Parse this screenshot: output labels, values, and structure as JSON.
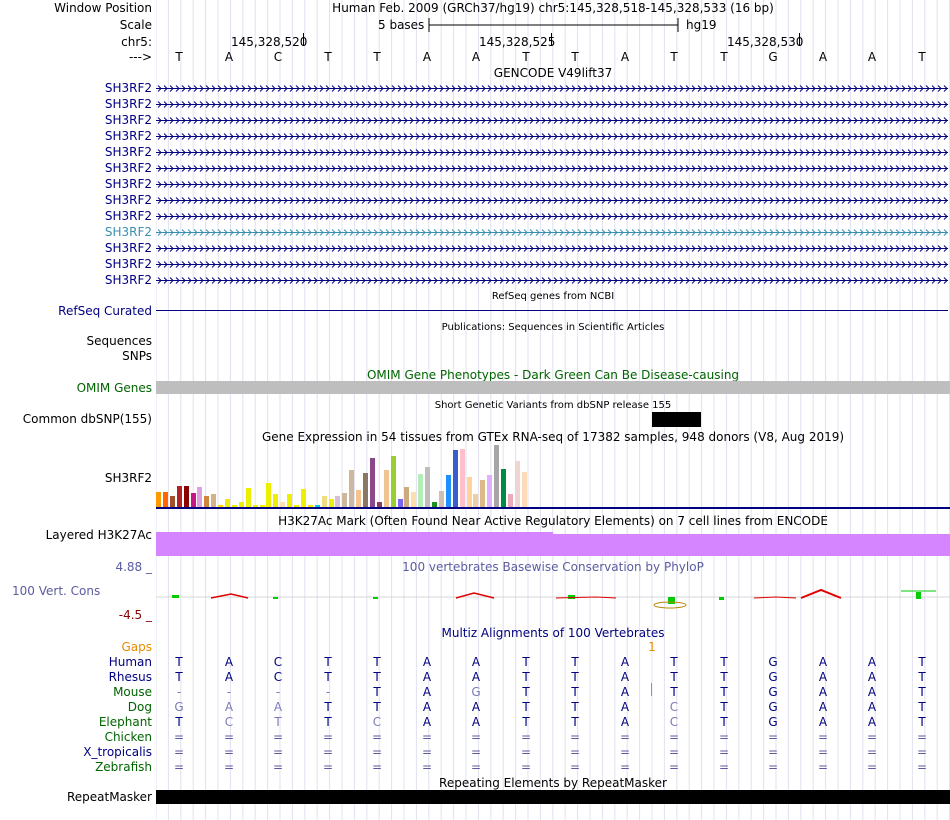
{
  "header": {
    "window_position_label": "Window Position",
    "scale_label": "Scale",
    "chrom_label": "chr5:",
    "strand_label": "--->",
    "position_text": "Human Feb. 2009 (GRCh37/hg19)   chr5:145,328,518-145,328,533 (16 bp)",
    "scale_text": "5 bases",
    "assembly_text": "hg19",
    "coords": [
      "145,328,520",
      "145,328,525",
      "145,328,530"
    ]
  },
  "reference_bases": [
    "T",
    "A",
    "C",
    "T",
    "T",
    "A",
    "A",
    "T",
    "T",
    "A",
    "T",
    "T",
    "G",
    "A",
    "A",
    "T"
  ],
  "gencode": {
    "title": "GENCODE V49lift37",
    "transcripts": [
      {
        "label": "SH3RF2",
        "selected": false
      },
      {
        "label": "SH3RF2",
        "selected": false
      },
      {
        "label": "SH3RF2",
        "selected": false
      },
      {
        "label": "SH3RF2",
        "selected": false
      },
      {
        "label": "SH3RF2",
        "selected": false
      },
      {
        "label": "SH3RF2",
        "selected": false
      },
      {
        "label": "SH3RF2",
        "selected": false
      },
      {
        "label": "SH3RF2",
        "selected": false
      },
      {
        "label": "SH3RF2",
        "selected": false
      },
      {
        "label": "SH3RF2",
        "selected": true
      },
      {
        "label": "SH3RF2",
        "selected": false
      },
      {
        "label": "SH3RF2",
        "selected": false
      },
      {
        "label": "SH3RF2",
        "selected": false
      }
    ]
  },
  "refseq": {
    "title": "RefSeq genes from NCBI",
    "label": "RefSeq Curated"
  },
  "publications": {
    "title": "Publications: Sequences in Scientific Articles",
    "label_sequences": "Sequences",
    "label_snps": "SNPs"
  },
  "omim": {
    "title": "OMIM Gene Phenotypes - Dark Green Can Be Disease-causing",
    "label": "OMIM Genes"
  },
  "dbsnp": {
    "title": "Short Genetic Variants from dbSNP release 155",
    "label": "Common dbSNP(155)"
  },
  "gtex": {
    "title": "Gene Expression in 54 tissues from GTEx RNA-seq of 17382 samples, 948 donors (V8, Aug 2019)",
    "label": "SH3RF2",
    "values": [
      0.24,
      0.24,
      0.18,
      0.34,
      0.34,
      0.22,
      0.32,
      0.18,
      0.2,
      0.03,
      0.13,
      0.03,
      0.08,
      0.3,
      0.03,
      0.03,
      0.38,
      0.2,
      0.08,
      0.2,
      0.03,
      0.29,
      0.03,
      0.03,
      0.18,
      0.12,
      0.18,
      0.22,
      0.59,
      0.27,
      0.54,
      0.78,
      0.08,
      0.58,
      0.81,
      0.12,
      0.32,
      0.24,
      0.52,
      0.63,
      0.08,
      0.25,
      0.5,
      0.9,
      0.92,
      0.48,
      0.21,
      0.43,
      0.5,
      0.98,
      0.6,
      0.2,
      0.73,
      0.55
    ],
    "colors": [
      "#FF9900",
      "#FF6600",
      "#A0522D",
      "#B22222",
      "#8B0000",
      "#C71585",
      "#DDA0DD",
      "#CD853F",
      "#D2B48C",
      "#FFD700",
      "#EEEE00",
      "#EEEE00",
      "#EEEE00",
      "#EEEE00",
      "#EEEE00",
      "#EEEE00",
      "#EEEE00",
      "#EEEE00",
      "#FFDEAD",
      "#EEEE00",
      "#EEEE00",
      "#EEEE00",
      "#EEEE00",
      "#00CED1",
      "#EEDD82",
      "#EEEE00",
      "#D8BFD8",
      "#CDB79E",
      "#CDB79E",
      "#F4C28C",
      "#8B7765",
      "#8B4789",
      "#8B3A62",
      "#EEC591",
      "#9ACD32",
      "#7A67EE",
      "#CDAA7D",
      "#FFDEAD",
      "#B4EEB4",
      "#BEBEBE",
      "#228B22",
      "#CDC0B0",
      "#1E90FF",
      "#3A5FCD",
      "#FFC0CB",
      "#FFD39B",
      "#EECFA1",
      "#DEB887",
      "#E0B0FF",
      "#A6A6A6",
      "#008B45",
      "#EEA9B8",
      "#EED5D2",
      "#FFDAB9"
    ]
  },
  "h3k27ac": {
    "title": "H3K27Ac Mark (Often Found Near Active Regulatory Elements) on 7 cell lines from ENCODE",
    "label": "Layered H3K27Ac",
    "color": "#D585FF"
  },
  "phylop": {
    "title": "100 vertebrates Basewise Conservation by PhyloP",
    "label": "100 Vert. Cons",
    "max": "4.88 _",
    "min": "-4.5 _"
  },
  "multiz": {
    "title": "Multiz Alignments of 100 Vertebrates",
    "gaps_label": "Gaps",
    "gaps_mark": "1",
    "species": [
      {
        "name": "Human",
        "bases": [
          "T",
          "A",
          "C",
          "T",
          "T",
          "A",
          "A",
          "T",
          "T",
          "A",
          "T",
          "T",
          "G",
          "A",
          "A",
          "T"
        ]
      },
      {
        "name": "Rhesus",
        "bases": [
          "T",
          "A",
          "C",
          "T",
          "T",
          "A",
          "A",
          "T",
          "T",
          "A",
          "T",
          "T",
          "G",
          "A",
          "A",
          "T"
        ]
      },
      {
        "name": "Mouse",
        "bases": [
          "-",
          "-",
          "-",
          "-",
          "T",
          "A",
          "G",
          "T",
          "T",
          "A",
          "T",
          "T",
          "G",
          "A",
          "A",
          "T"
        ]
      },
      {
        "name": "Dog",
        "bases": [
          "G",
          "A",
          "A",
          "T",
          "T",
          "A",
          "A",
          "T",
          "T",
          "A",
          "C",
          "T",
          "G",
          "A",
          "A",
          "T"
        ]
      },
      {
        "name": "Elephant",
        "bases": [
          "T",
          "C",
          "T",
          "T",
          "C",
          "A",
          "A",
          "T",
          "T",
          "A",
          "C",
          "T",
          "G",
          "A",
          "A",
          "T"
        ]
      },
      {
        "name": "Chicken",
        "bases": [
          "=",
          "=",
          "=",
          "=",
          "=",
          "=",
          "=",
          "=",
          "=",
          "=",
          "=",
          "=",
          "=",
          "=",
          "=",
          "="
        ]
      },
      {
        "name": "X_tropicalis",
        "bases": [
          "=",
          "=",
          "=",
          "=",
          "=",
          "=",
          "=",
          "=",
          "=",
          "=",
          "=",
          "=",
          "=",
          "=",
          "=",
          "="
        ]
      },
      {
        "name": "Zebrafish",
        "bases": [
          "=",
          "=",
          "=",
          "=",
          "=",
          "=",
          "=",
          "=",
          "=",
          "=",
          "=",
          "=",
          "=",
          "=",
          "=",
          "="
        ]
      }
    ]
  },
  "repeatmasker": {
    "title": "Repeating Elements by RepeatMasker",
    "label": "RepeatMasker"
  },
  "colors": {
    "navy": "#000080",
    "omim_green": "#006400",
    "phylop_blue": "#5B5BA0",
    "gaps_orange": "#E68A00",
    "selected_teal": "#3B8FB0",
    "omim_gray": "#BEBEBE"
  }
}
